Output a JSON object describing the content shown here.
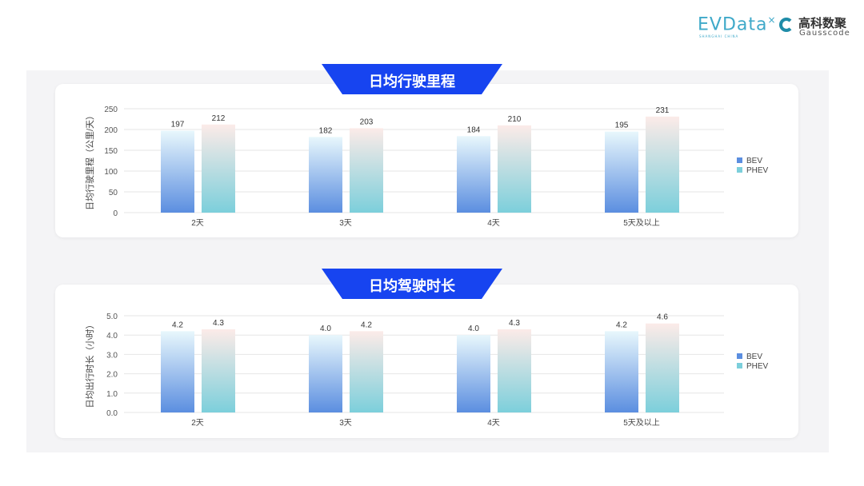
{
  "logos": {
    "evdata": "EVData",
    "evdata_sub": "SHANGHAI CHINA",
    "gauss_cn": "高科数聚",
    "gauss_en": "Gausscode"
  },
  "colors": {
    "banner": "#1744f0",
    "bev_top": "#e8f7fc",
    "bev_bottom": "#5b8ee0",
    "phev_top": "#fcebe8",
    "phev_bottom": "#7ccfdb"
  },
  "chart_data": [
    {
      "type": "bar",
      "title": "日均行驶里程",
      "ylabel": "日均行驶里程（公里/天）",
      "categories": [
        "2天",
        "3天",
        "4天",
        "5天及以上"
      ],
      "ylim": [
        0,
        250
      ],
      "yticks": [
        "0",
        "50",
        "100",
        "150",
        "200",
        "250"
      ],
      "tickvals": [
        0,
        50,
        100,
        150,
        200,
        250
      ],
      "grid": true,
      "legend": "right",
      "series": [
        {
          "name": "BEV",
          "values": [
            197,
            182,
            184,
            195
          ],
          "labels": [
            "197",
            "182",
            "184",
            "195"
          ]
        },
        {
          "name": "PHEV",
          "values": [
            212,
            203,
            210,
            231
          ],
          "labels": [
            "212",
            "203",
            "210",
            "231"
          ]
        }
      ]
    },
    {
      "type": "bar",
      "title": "日均驾驶时长",
      "ylabel": "日均出行时长（小时）",
      "categories": [
        "2天",
        "3天",
        "4天",
        "5天及以上"
      ],
      "ylim": [
        0,
        5
      ],
      "yticks": [
        "0.0",
        "1.0",
        "2.0",
        "3.0",
        "4.0",
        "5.0"
      ],
      "tickvals": [
        0,
        1,
        2,
        3,
        4,
        5
      ],
      "grid": true,
      "legend": "right",
      "series": [
        {
          "name": "BEV",
          "values": [
            4.2,
            4.0,
            4.0,
            4.2
          ],
          "labels": [
            "4.2",
            "4.0",
            "4.0",
            "4.2"
          ]
        },
        {
          "name": "PHEV",
          "values": [
            4.3,
            4.2,
            4.3,
            4.6
          ],
          "labels": [
            "4.3",
            "4.2",
            "4.3",
            "4.6"
          ]
        }
      ]
    }
  ]
}
